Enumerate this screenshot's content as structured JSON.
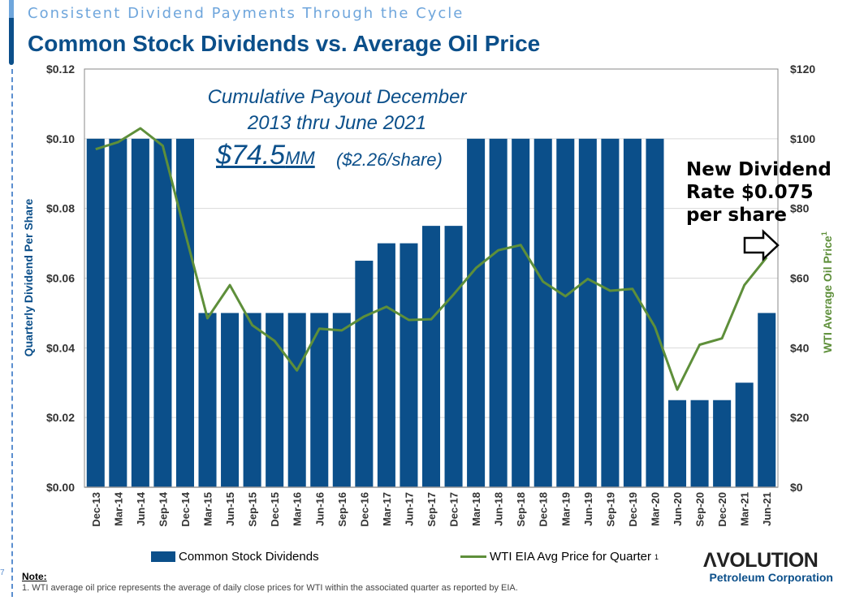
{
  "header": {
    "subtitle": "Consistent Dividend Payments Through the Cycle",
    "title": "Common Stock Dividends vs. Average Oil Price"
  },
  "callout": {
    "line1": "Cumulative Payout December",
    "line2": "2013 thru June 2021",
    "amount": "$74.5",
    "amount_unit": "MM",
    "per_share": "($2.26/share)"
  },
  "annotation": {
    "line1": "New Dividend",
    "line2": "Rate $0.075",
    "line3": "per share",
    "arrow_icon": "arrow-right-outline-icon"
  },
  "legend": {
    "dividends": "Common Stock Dividends",
    "oil": "WTI EIA Avg Price for Quarter",
    "oil_sup": "1"
  },
  "note": {
    "label": "Note:",
    "text": "1. WTI average oil price represents the average of daily close prices for WTI within the associated quarter as reported by EIA."
  },
  "logo": {
    "main": "EVOLUTION",
    "sub": "Petroleum Corporation"
  },
  "page_number": "7",
  "colors": {
    "bar": "#0b4f8a",
    "line": "#5e8f3a",
    "grid": "#d9d9d9"
  },
  "chart_data": {
    "type": "bar+line",
    "categories": [
      "Dec-13",
      "Mar-14",
      "Jun-14",
      "Sep-14",
      "Dec-14",
      "Mar-15",
      "Jun-15",
      "Sep-15",
      "Dec-15",
      "Mar-16",
      "Jun-16",
      "Sep-16",
      "Dec-16",
      "Mar-17",
      "Jun-17",
      "Sep-17",
      "Dec-17",
      "Mar-18",
      "Jun-18",
      "Sep-18",
      "Dec-18",
      "Mar-19",
      "Jun-19",
      "Sep-19",
      "Dec-19",
      "Mar-20",
      "Jun-20",
      "Sep-20",
      "Dec-20",
      "Mar-21",
      "Jun-21"
    ],
    "series": [
      {
        "name": "Common Stock Dividends",
        "type": "bar",
        "axis": "left",
        "values": [
          0.1,
          0.1,
          0.1,
          0.1,
          0.1,
          0.05,
          0.05,
          0.05,
          0.05,
          0.05,
          0.05,
          0.05,
          0.065,
          0.07,
          0.07,
          0.075,
          0.075,
          0.1,
          0.1,
          0.1,
          0.1,
          0.1,
          0.1,
          0.1,
          0.1,
          0.1,
          0.025,
          0.025,
          0.025,
          0.03,
          0.05
        ]
      },
      {
        "name": "WTI EIA Avg Price for Quarter",
        "type": "line",
        "axis": "right",
        "values": [
          97,
          99,
          103,
          98,
          73,
          48.5,
          58,
          46.5,
          42,
          33.5,
          45.5,
          45,
          49,
          51.8,
          48,
          48.2,
          55.3,
          62.9,
          68,
          69.5,
          59,
          54.8,
          59.8,
          56.4,
          56.9,
          46,
          28,
          40.9,
          42.7,
          58,
          66
        ]
      }
    ],
    "ylabel": "Quarterly Dividend Per Share",
    "y2label": "WTI Average Oil Price",
    "y2label_sup": "1",
    "ylim": [
      0,
      0.12
    ],
    "y2lim": [
      0,
      120
    ],
    "yticks": [
      "$0.00",
      "$0.02",
      "$0.04",
      "$0.06",
      "$0.08",
      "$0.10",
      "$0.12"
    ],
    "y2ticks": [
      "$0",
      "$20",
      "$40",
      "$60",
      "$80",
      "$100",
      "$120"
    ],
    "grid": true,
    "legend_position": "bottom"
  }
}
